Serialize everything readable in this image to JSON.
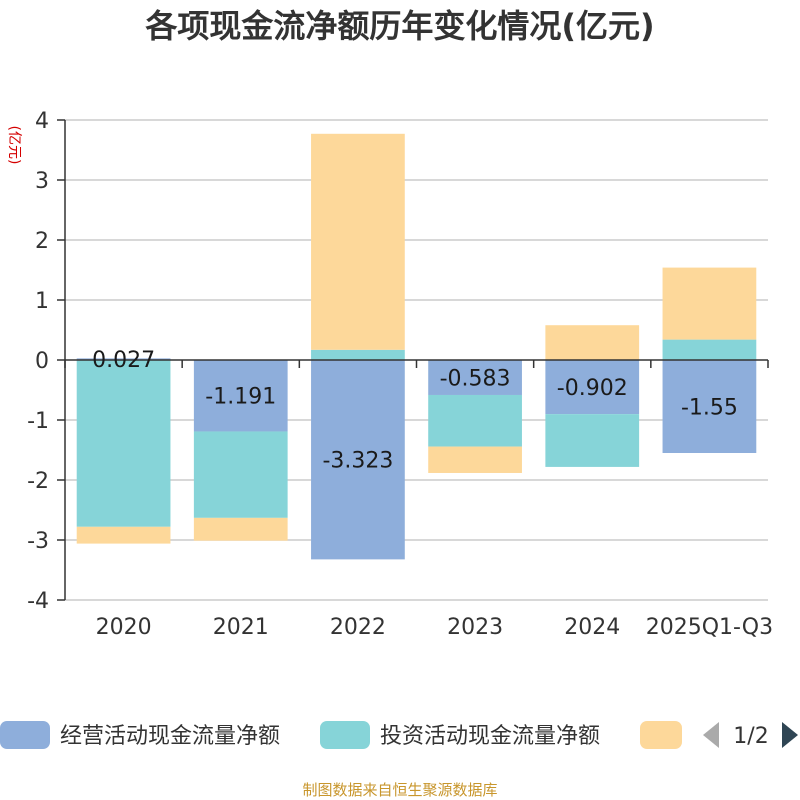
{
  "chart_data": {
    "type": "bar",
    "stacked": true,
    "title": "各项现金流净额历年变化情况(亿元)",
    "ylabel": "(亿元)",
    "ylim": [
      -4,
      4
    ],
    "yticks": [
      4,
      3,
      2,
      1,
      0,
      -1,
      -2,
      -3,
      -4
    ],
    "grid": true,
    "categories": [
      "2020",
      "2021",
      "2022",
      "2023",
      "2024",
      "2025Q1-Q3"
    ],
    "series": [
      {
        "name": "经营活动现金流量净额",
        "color": "#8eaedb",
        "values": [
          0.027,
          -1.191,
          -3.323,
          -0.583,
          -0.902,
          -1.55
        ],
        "labels": [
          "0.027",
          "-1.191",
          "-3.323",
          "-0.583",
          "-0.902",
          "-1.55"
        ]
      },
      {
        "name": "投资活动现金流量净额",
        "color": "#86d4d8",
        "values": [
          -2.78,
          -1.44,
          0.17,
          -0.86,
          -0.88,
          0.34
        ]
      },
      {
        "color": "#fdd89a",
        "values": [
          -0.28,
          -0.38,
          3.6,
          -0.44,
          0.58,
          1.2
        ]
      }
    ],
    "legend": {
      "position": "bottom",
      "page": "1/2"
    }
  },
  "source": "制图数据来自恒生聚源数据库"
}
